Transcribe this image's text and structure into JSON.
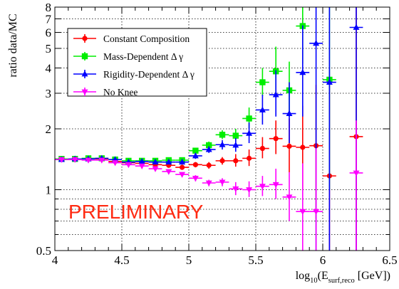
{
  "chart_data": {
    "type": "scatter",
    "title": "",
    "ylabel": "ratio data/MC",
    "xlabel": {
      "prefix": "log",
      "prefix_sub": "10",
      "mid": "(E",
      "mid_sub": "surf,reco",
      "suffix": " [GeV])"
    },
    "xlim": [
      4,
      6.5
    ],
    "ylim": [
      0.5,
      8
    ],
    "y_scale": "log",
    "grid": true,
    "legend_position": "top-left",
    "x_ticks": [
      "4",
      "4.5",
      "5",
      "5.5",
      "6",
      "6.5"
    ],
    "y_ticks": [
      "0.5",
      "1",
      "2",
      "3",
      "4",
      "5",
      "6",
      "7",
      "8"
    ],
    "annotation": "PRELIMINARY",
    "series": [
      {
        "name": "Constant Composition",
        "color": "#ff0000",
        "marker": "circle",
        "points": [
          {
            "x": 4.05,
            "y": 1.41,
            "ylo": 1.38,
            "yhi": 1.44
          },
          {
            "x": 4.15,
            "y": 1.41,
            "ylo": 1.38,
            "yhi": 1.44
          },
          {
            "x": 4.25,
            "y": 1.42,
            "ylo": 1.39,
            "yhi": 1.45
          },
          {
            "x": 4.35,
            "y": 1.42,
            "ylo": 1.39,
            "yhi": 1.45
          },
          {
            "x": 4.45,
            "y": 1.38,
            "ylo": 1.35,
            "yhi": 1.41
          },
          {
            "x": 4.55,
            "y": 1.36,
            "ylo": 1.33,
            "yhi": 1.39
          },
          {
            "x": 4.65,
            "y": 1.35,
            "ylo": 1.32,
            "yhi": 1.38
          },
          {
            "x": 4.75,
            "y": 1.33,
            "ylo": 1.3,
            "yhi": 1.36
          },
          {
            "x": 4.85,
            "y": 1.32,
            "ylo": 1.29,
            "yhi": 1.35
          },
          {
            "x": 4.95,
            "y": 1.29,
            "ylo": 1.26,
            "yhi": 1.33
          },
          {
            "x": 5.05,
            "y": 1.33,
            "ylo": 1.29,
            "yhi": 1.37
          },
          {
            "x": 5.15,
            "y": 1.32,
            "ylo": 1.27,
            "yhi": 1.37
          },
          {
            "x": 5.25,
            "y": 1.39,
            "ylo": 1.33,
            "yhi": 1.45
          },
          {
            "x": 5.35,
            "y": 1.39,
            "ylo": 1.3,
            "yhi": 1.5
          },
          {
            "x": 5.45,
            "y": 1.43,
            "ylo": 1.31,
            "yhi": 1.58
          },
          {
            "x": 5.55,
            "y": 1.6,
            "ylo": 1.43,
            "yhi": 1.82
          },
          {
            "x": 5.65,
            "y": 1.79,
            "ylo": 1.5,
            "yhi": 2.2
          },
          {
            "x": 5.75,
            "y": 1.64,
            "ylo": 1.22,
            "yhi": 2.25
          },
          {
            "x": 5.85,
            "y": 1.62,
            "ylo": 1.0,
            "yhi": 2.6
          },
          {
            "x": 5.95,
            "y": 1.65,
            "ylo": 0.72,
            "yhi": 3.3
          },
          {
            "x": 6.05,
            "y": 1.17,
            "ylo": 0.5,
            "yhi": 3.5
          },
          {
            "x": 6.25,
            "y": 1.83,
            "ylo": 0.5,
            "yhi": 8.0
          }
        ]
      },
      {
        "name": "Mass-Dependent Δ γ",
        "color": "#00ee00",
        "marker": "square",
        "points": [
          {
            "x": 4.05,
            "y": 1.42,
            "ylo": 1.39,
            "yhi": 1.45
          },
          {
            "x": 4.15,
            "y": 1.42,
            "ylo": 1.39,
            "yhi": 1.45
          },
          {
            "x": 4.25,
            "y": 1.43,
            "ylo": 1.4,
            "yhi": 1.46
          },
          {
            "x": 4.35,
            "y": 1.43,
            "ylo": 1.4,
            "yhi": 1.46
          },
          {
            "x": 4.45,
            "y": 1.41,
            "ylo": 1.38,
            "yhi": 1.44
          },
          {
            "x": 4.55,
            "y": 1.39,
            "ylo": 1.36,
            "yhi": 1.42
          },
          {
            "x": 4.65,
            "y": 1.39,
            "ylo": 1.36,
            "yhi": 1.42
          },
          {
            "x": 4.75,
            "y": 1.39,
            "ylo": 1.36,
            "yhi": 1.42
          },
          {
            "x": 4.85,
            "y": 1.4,
            "ylo": 1.37,
            "yhi": 1.43
          },
          {
            "x": 4.95,
            "y": 1.4,
            "ylo": 1.37,
            "yhi": 1.43
          },
          {
            "x": 5.05,
            "y": 1.56,
            "ylo": 1.51,
            "yhi": 1.61
          },
          {
            "x": 5.15,
            "y": 1.66,
            "ylo": 1.6,
            "yhi": 1.73
          },
          {
            "x": 5.25,
            "y": 1.87,
            "ylo": 1.78,
            "yhi": 1.97
          },
          {
            "x": 5.35,
            "y": 1.85,
            "ylo": 1.72,
            "yhi": 2.0
          },
          {
            "x": 5.45,
            "y": 2.25,
            "ylo": 2.0,
            "yhi": 2.55
          },
          {
            "x": 5.55,
            "y": 3.4,
            "ylo": 2.9,
            "yhi": 4.0
          },
          {
            "x": 5.65,
            "y": 3.85,
            "ylo": 3.0,
            "yhi": 5.1
          },
          {
            "x": 5.75,
            "y": 3.1,
            "ylo": 2.3,
            "yhi": 4.3
          },
          {
            "x": 5.85,
            "y": 6.45,
            "ylo": 4.2,
            "yhi": 8.0
          },
          {
            "x": 6.05,
            "y": 3.5,
            "ylo": 1.0,
            "yhi": 8.0
          }
        ]
      },
      {
        "name": "Rigidity-Dependent Δ γ",
        "color": "#0000ff",
        "marker": "triangle-up",
        "points": [
          {
            "x": 4.05,
            "y": 1.41,
            "ylo": 1.38,
            "yhi": 1.44
          },
          {
            "x": 4.15,
            "y": 1.42,
            "ylo": 1.39,
            "yhi": 1.45
          },
          {
            "x": 4.25,
            "y": 1.42,
            "ylo": 1.39,
            "yhi": 1.45
          },
          {
            "x": 4.35,
            "y": 1.43,
            "ylo": 1.4,
            "yhi": 1.46
          },
          {
            "x": 4.45,
            "y": 1.41,
            "ylo": 1.38,
            "yhi": 1.44
          },
          {
            "x": 4.55,
            "y": 1.37,
            "ylo": 1.34,
            "yhi": 1.4
          },
          {
            "x": 4.65,
            "y": 1.38,
            "ylo": 1.35,
            "yhi": 1.41
          },
          {
            "x": 4.75,
            "y": 1.37,
            "ylo": 1.34,
            "yhi": 1.4
          },
          {
            "x": 4.85,
            "y": 1.37,
            "ylo": 1.34,
            "yhi": 1.4
          },
          {
            "x": 4.95,
            "y": 1.37,
            "ylo": 1.34,
            "yhi": 1.4
          },
          {
            "x": 5.05,
            "y": 1.47,
            "ylo": 1.42,
            "yhi": 1.52
          },
          {
            "x": 5.15,
            "y": 1.58,
            "ylo": 1.52,
            "yhi": 1.64
          },
          {
            "x": 5.25,
            "y": 1.67,
            "ylo": 1.58,
            "yhi": 1.76
          },
          {
            "x": 5.35,
            "y": 1.66,
            "ylo": 1.54,
            "yhi": 1.8
          },
          {
            "x": 5.45,
            "y": 1.9,
            "ylo": 1.7,
            "yhi": 2.15
          },
          {
            "x": 5.55,
            "y": 2.48,
            "ylo": 2.1,
            "yhi": 2.95
          },
          {
            "x": 5.65,
            "y": 2.95,
            "ylo": 2.3,
            "yhi": 3.9
          },
          {
            "x": 5.75,
            "y": 2.38,
            "ylo": 1.7,
            "yhi": 3.4
          },
          {
            "x": 5.85,
            "y": 3.8,
            "ylo": 2.3,
            "yhi": 6.5
          },
          {
            "x": 5.95,
            "y": 5.3,
            "ylo": 0.5,
            "yhi": 8.0
          },
          {
            "x": 6.05,
            "y": 3.4,
            "ylo": 0.5,
            "yhi": 8.0
          },
          {
            "x": 6.25,
            "y": 6.35,
            "ylo": 0.5,
            "yhi": 8.0
          }
        ]
      },
      {
        "name": "No Knee",
        "color": "#ff00ff",
        "marker": "triangle-down",
        "points": [
          {
            "x": 4.05,
            "y": 1.41,
            "ylo": 1.38,
            "yhi": 1.44
          },
          {
            "x": 4.15,
            "y": 1.41,
            "ylo": 1.38,
            "yhi": 1.44
          },
          {
            "x": 4.25,
            "y": 1.4,
            "ylo": 1.37,
            "yhi": 1.43
          },
          {
            "x": 4.35,
            "y": 1.4,
            "ylo": 1.37,
            "yhi": 1.43
          },
          {
            "x": 4.45,
            "y": 1.36,
            "ylo": 1.33,
            "yhi": 1.39
          },
          {
            "x": 4.55,
            "y": 1.33,
            "ylo": 1.3,
            "yhi": 1.36
          },
          {
            "x": 4.65,
            "y": 1.31,
            "ylo": 1.28,
            "yhi": 1.34
          },
          {
            "x": 4.75,
            "y": 1.27,
            "ylo": 1.24,
            "yhi": 1.3
          },
          {
            "x": 4.85,
            "y": 1.23,
            "ylo": 1.2,
            "yhi": 1.26
          },
          {
            "x": 4.95,
            "y": 1.19,
            "ylo": 1.16,
            "yhi": 1.22
          },
          {
            "x": 5.05,
            "y": 1.14,
            "ylo": 1.1,
            "yhi": 1.18
          },
          {
            "x": 5.15,
            "y": 1.08,
            "ylo": 1.04,
            "yhi": 1.12
          },
          {
            "x": 5.25,
            "y": 1.09,
            "ylo": 1.04,
            "yhi": 1.14
          },
          {
            "x": 5.35,
            "y": 1.01,
            "ylo": 0.94,
            "yhi": 1.09
          },
          {
            "x": 5.45,
            "y": 1.0,
            "ylo": 0.92,
            "yhi": 1.1
          },
          {
            "x": 5.55,
            "y": 1.04,
            "ylo": 0.93,
            "yhi": 1.17
          },
          {
            "x": 5.65,
            "y": 1.06,
            "ylo": 0.9,
            "yhi": 1.27
          },
          {
            "x": 5.75,
            "y": 0.92,
            "ylo": 0.7,
            "yhi": 1.22
          },
          {
            "x": 5.85,
            "y": 0.78,
            "ylo": 0.5,
            "yhi": 1.35
          },
          {
            "x": 5.95,
            "y": 0.78,
            "ylo": 0.5,
            "yhi": 1.6
          },
          {
            "x": 6.25,
            "y": 1.21,
            "ylo": 0.5,
            "yhi": 2.2
          }
        ]
      }
    ]
  }
}
